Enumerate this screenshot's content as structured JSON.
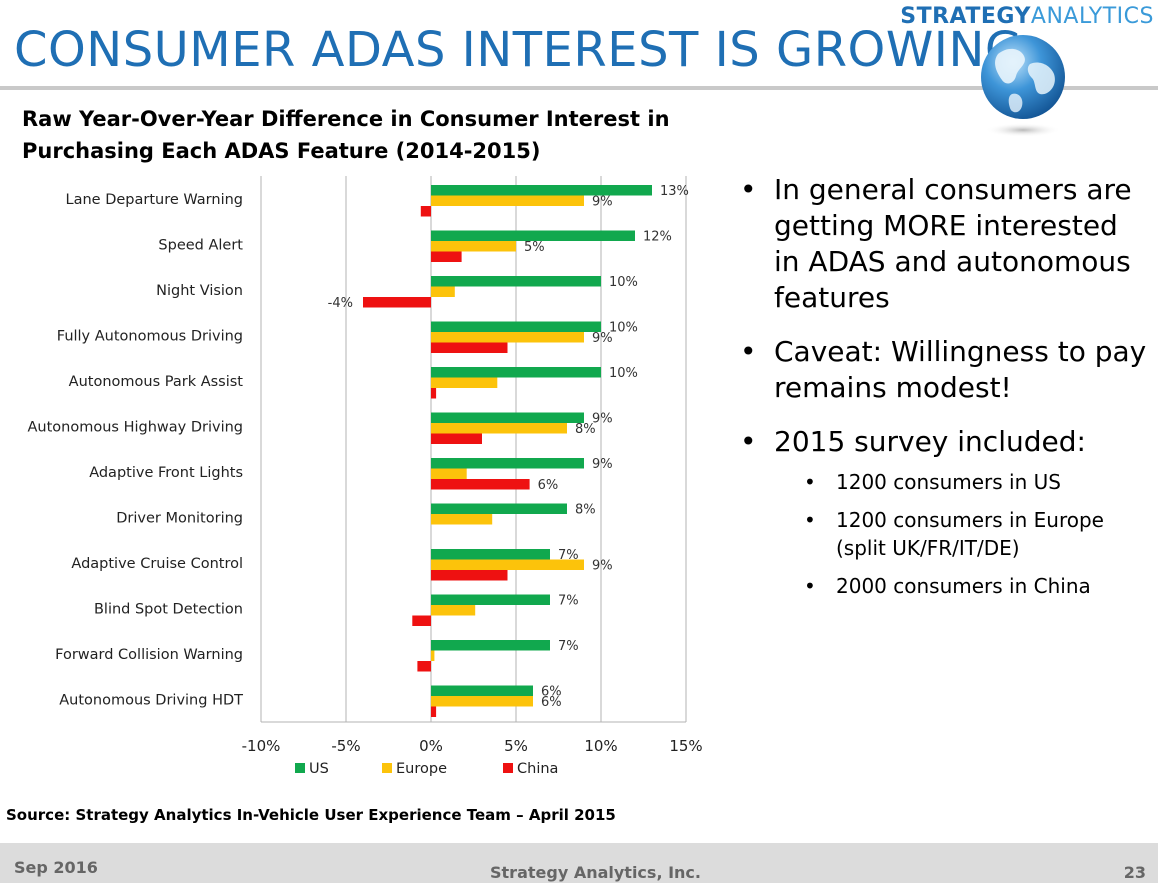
{
  "brand": {
    "part1": "STRATEGY",
    "part2": "ANALYTICS"
  },
  "title": "CONSUMER ADAS INTEREST IS GROWING",
  "subtitle": {
    "line1": "Raw Year-Over-Year Difference in Consumer Interest in",
    "line2": "Purchasing Each ADAS Feature (2014-2015)"
  },
  "chart_data": {
    "type": "bar",
    "orientation": "horizontal",
    "categories": [
      "Lane Departure Warning",
      "Speed Alert",
      "Night Vision",
      "Fully Autonomous Driving",
      "Autonomous Park Assist",
      "Autonomous Highway Driving",
      "Adaptive Front Lights",
      "Driver Monitoring",
      "Adaptive Cruise Control",
      "Blind Spot Detection",
      "Forward Collision Warning",
      "Autonomous Driving HDT"
    ],
    "series": [
      {
        "name": "US",
        "color": "#11a84e",
        "values": [
          13,
          12,
          10,
          10,
          10,
          9,
          9,
          8,
          7,
          7,
          7,
          6
        ],
        "labels": [
          "13%",
          "12%",
          "10%",
          "10%",
          "10%",
          "9%",
          "9%",
          "8%",
          "7%",
          "7%",
          "7%",
          "6%"
        ]
      },
      {
        "name": "Europe",
        "color": "#fcc30b",
        "values": [
          9,
          5,
          1.4,
          9,
          3.9,
          8,
          2.1,
          3.6,
          9,
          2.6,
          0.2,
          6
        ],
        "labels": [
          "9%",
          "5%",
          "",
          "9%",
          "",
          "8%",
          "",
          "",
          "9%",
          "",
          "",
          "6%"
        ]
      },
      {
        "name": "China",
        "color": "#ee1111",
        "values": [
          -0.6,
          1.8,
          -4,
          4.5,
          0.3,
          3,
          5.8,
          0,
          4.5,
          -1.1,
          -0.8,
          0.3
        ],
        "labels": [
          "",
          "",
          "-4%",
          "",
          "",
          "",
          "6%",
          "",
          "",
          "",
          "",
          ""
        ]
      }
    ],
    "xlim": [
      -10,
      15
    ],
    "xticks": [
      -10,
      -5,
      0,
      5,
      10,
      15
    ],
    "tick_labels": [
      "-10%",
      "-5%",
      "0%",
      "5%",
      "10%",
      "15%"
    ],
    "grid": "vertical",
    "legend": "bottom"
  },
  "bullets": [
    {
      "text": "In general consumers are getting MORE interested in ADAS and autonomous features"
    },
    {
      "text": "Caveat: Willingness to pay remains modest!"
    },
    {
      "text": "2015 survey included:",
      "sub": [
        "1200 consumers in US",
        "1200 consumers in Europe (split UK/FR/IT/DE)",
        "2000 consumers in China"
      ]
    }
  ],
  "source": "Source: Strategy Analytics In-Vehicle User Experience Team – April 2015",
  "footer": {
    "date": "Sep 2016",
    "company": "Strategy Analytics, Inc.",
    "page": "23"
  },
  "icons": {
    "logo_globe": "globe-icon"
  }
}
